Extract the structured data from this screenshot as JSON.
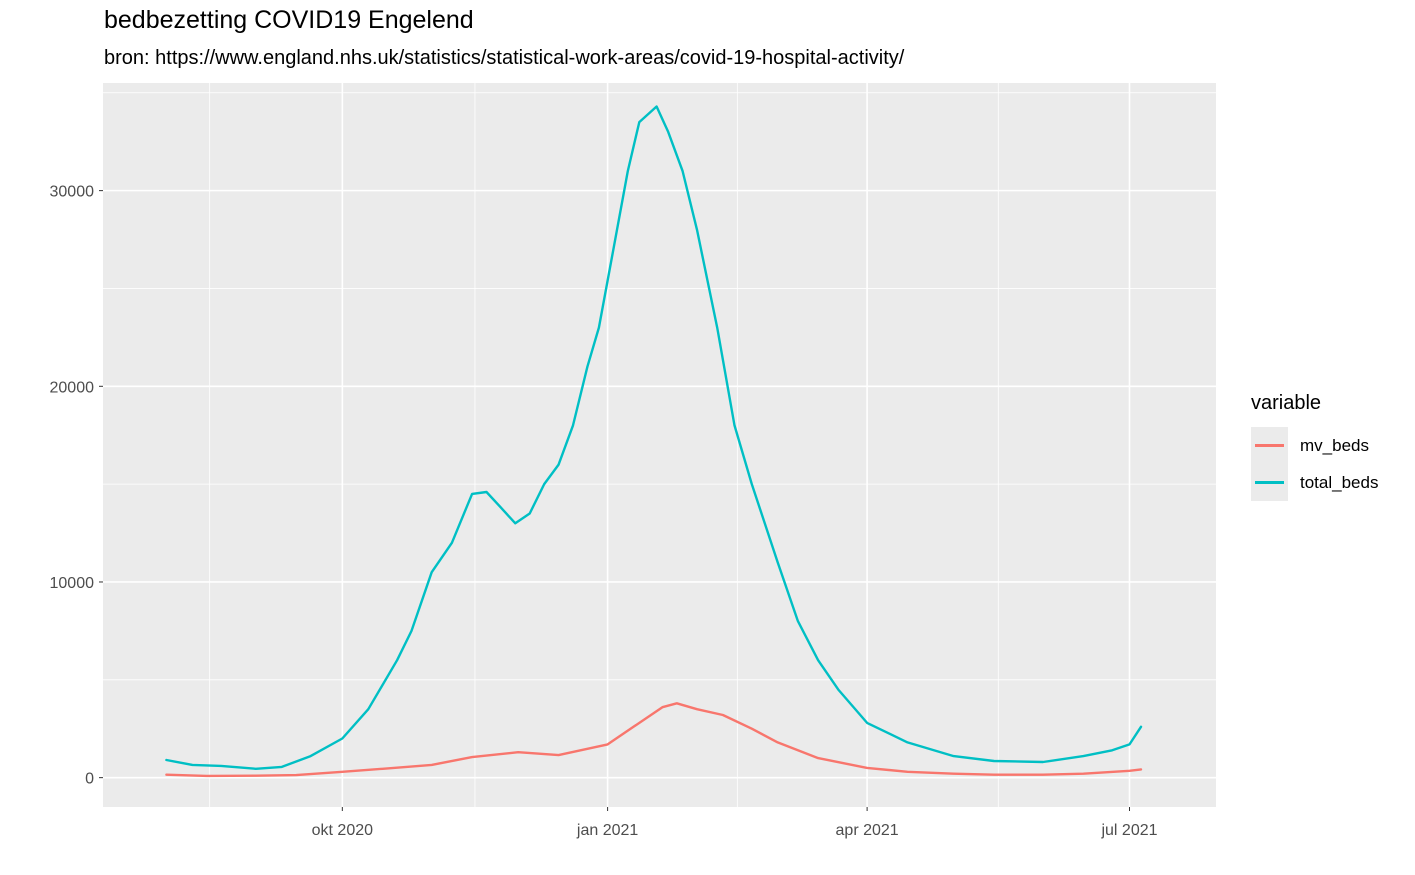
{
  "chart_data": {
    "type": "line",
    "title": "bedbezetting COVID19 Engelend",
    "subtitle": "bron: https://www.england.nhs.uk/statistics/statistical-work-areas/covid-19-hospital-activity/",
    "xlabel": "",
    "ylabel": "",
    "x_axis": {
      "type": "date",
      "range": [
        "2020-07-10",
        "2021-07-31"
      ],
      "ticks": [
        {
          "date": "2020-10-01",
          "label": "okt 2020"
        },
        {
          "date": "2021-01-01",
          "label": "jan 2021"
        },
        {
          "date": "2021-04-01",
          "label": "apr 2021"
        },
        {
          "date": "2021-07-01",
          "label": "jul 2021"
        }
      ]
    },
    "y_axis": {
      "range": [
        -1500,
        35500
      ],
      "ticks": [
        0,
        10000,
        20000,
        30000
      ]
    },
    "grid": true,
    "legend": {
      "title": "variable",
      "position": "right"
    },
    "series": [
      {
        "name": "mv_beds",
        "color": "#F8766D",
        "points": [
          [
            "2020-08-01",
            150
          ],
          [
            "2020-08-15",
            90
          ],
          [
            "2020-09-01",
            100
          ],
          [
            "2020-09-15",
            130
          ],
          [
            "2020-10-01",
            300
          ],
          [
            "2020-10-15",
            450
          ],
          [
            "2020-11-01",
            650
          ],
          [
            "2020-11-15",
            1050
          ],
          [
            "2020-12-01",
            1300
          ],
          [
            "2020-12-15",
            1150
          ],
          [
            "2021-01-01",
            1700
          ],
          [
            "2021-01-10",
            2600
          ],
          [
            "2021-01-20",
            3600
          ],
          [
            "2021-01-25",
            3800
          ],
          [
            "2021-02-01",
            3500
          ],
          [
            "2021-02-10",
            3200
          ],
          [
            "2021-02-20",
            2500
          ],
          [
            "2021-03-01",
            1800
          ],
          [
            "2021-03-15",
            1000
          ],
          [
            "2021-04-01",
            500
          ],
          [
            "2021-04-15",
            300
          ],
          [
            "2021-05-01",
            200
          ],
          [
            "2021-05-15",
            150
          ],
          [
            "2021-06-01",
            150
          ],
          [
            "2021-06-15",
            200
          ],
          [
            "2021-07-01",
            350
          ],
          [
            "2021-07-05",
            420
          ]
        ]
      },
      {
        "name": "total_beds",
        "color": "#00BFC4",
        "points": [
          [
            "2020-08-01",
            900
          ],
          [
            "2020-08-10",
            650
          ],
          [
            "2020-08-20",
            600
          ],
          [
            "2020-09-01",
            450
          ],
          [
            "2020-09-10",
            550
          ],
          [
            "2020-09-20",
            1100
          ],
          [
            "2020-10-01",
            2000
          ],
          [
            "2020-10-10",
            3500
          ],
          [
            "2020-10-20",
            6000
          ],
          [
            "2020-10-25",
            7500
          ],
          [
            "2020-11-01",
            10500
          ],
          [
            "2020-11-08",
            12000
          ],
          [
            "2020-11-15",
            14500
          ],
          [
            "2020-11-20",
            14600
          ],
          [
            "2020-11-25",
            13800
          ],
          [
            "2020-11-30",
            13000
          ],
          [
            "2020-12-05",
            13500
          ],
          [
            "2020-12-10",
            15000
          ],
          [
            "2020-12-15",
            16000
          ],
          [
            "2020-12-20",
            18000
          ],
          [
            "2020-12-25",
            21000
          ],
          [
            "2020-12-29",
            23000
          ],
          [
            "2021-01-03",
            27000
          ],
          [
            "2021-01-08",
            31000
          ],
          [
            "2021-01-12",
            33500
          ],
          [
            "2021-01-18",
            34300
          ],
          [
            "2021-01-22",
            33000
          ],
          [
            "2021-01-27",
            31000
          ],
          [
            "2021-02-01",
            28000
          ],
          [
            "2021-02-08",
            23000
          ],
          [
            "2021-02-14",
            18000
          ],
          [
            "2021-02-20",
            15000
          ],
          [
            "2021-03-01",
            11000
          ],
          [
            "2021-03-08",
            8000
          ],
          [
            "2021-03-15",
            6000
          ],
          [
            "2021-03-22",
            4500
          ],
          [
            "2021-04-01",
            2800
          ],
          [
            "2021-04-15",
            1800
          ],
          [
            "2021-05-01",
            1100
          ],
          [
            "2021-05-15",
            850
          ],
          [
            "2021-06-01",
            800
          ],
          [
            "2021-06-15",
            1100
          ],
          [
            "2021-06-25",
            1400
          ],
          [
            "2021-07-01",
            1700
          ],
          [
            "2021-07-05",
            2600
          ]
        ]
      }
    ]
  }
}
